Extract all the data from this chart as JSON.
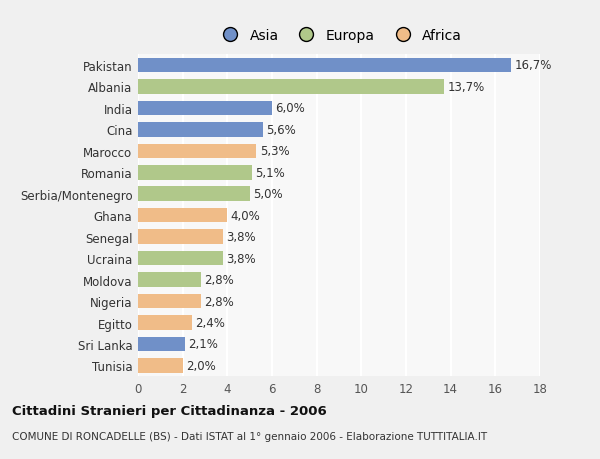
{
  "countries": [
    "Tunisia",
    "Sri Lanka",
    "Egitto",
    "Nigeria",
    "Moldova",
    "Ucraina",
    "Senegal",
    "Ghana",
    "Serbia/Montenegro",
    "Romania",
    "Marocco",
    "Cina",
    "India",
    "Albania",
    "Pakistan"
  ],
  "values": [
    2.0,
    2.1,
    2.4,
    2.8,
    2.8,
    3.8,
    3.8,
    4.0,
    5.0,
    5.1,
    5.3,
    5.6,
    6.0,
    13.7,
    16.7
  ],
  "labels": [
    "2,0%",
    "2,1%",
    "2,4%",
    "2,8%",
    "2,8%",
    "3,8%",
    "3,8%",
    "4,0%",
    "5,0%",
    "5,1%",
    "5,3%",
    "5,6%",
    "6,0%",
    "13,7%",
    "16,7%"
  ],
  "continents": [
    "Africa",
    "Asia",
    "Africa",
    "Africa",
    "Europa",
    "Europa",
    "Africa",
    "Africa",
    "Europa",
    "Europa",
    "Africa",
    "Asia",
    "Asia",
    "Europa",
    "Asia"
  ],
  "colors": {
    "Asia": "#7090c8",
    "Europa": "#b0c88a",
    "Africa": "#f0bc88"
  },
  "legend_labels": [
    "Asia",
    "Europa",
    "Africa"
  ],
  "legend_colors": [
    "#7090c8",
    "#b0c88a",
    "#f0bc88"
  ],
  "title_bold": "Cittadini Stranieri per Cittadinanza - 2006",
  "subtitle": "COMUNE DI RONCADELLE (BS) - Dati ISTAT al 1° gennaio 2006 - Elaborazione TUTTITALIA.IT",
  "xlim": [
    0,
    18
  ],
  "xticks": [
    0,
    2,
    4,
    6,
    8,
    10,
    12,
    14,
    16,
    18
  ],
  "background_color": "#f0f0f0",
  "plot_bg_color": "#f8f8f8",
  "grid_color": "#ffffff",
  "bar_height": 0.68
}
